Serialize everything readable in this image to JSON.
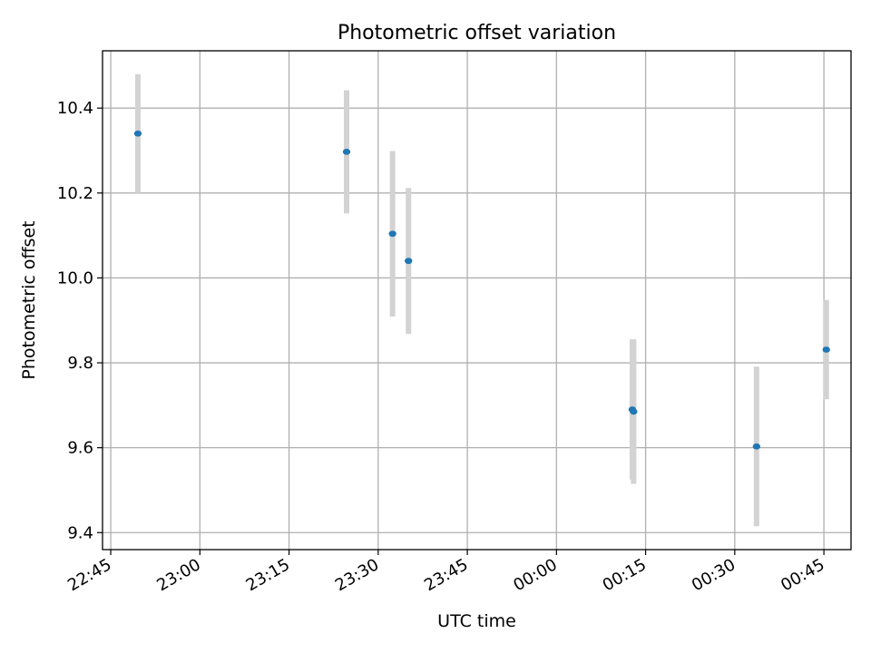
{
  "chart_data": {
    "type": "scatter",
    "title": "Photometric offset variation",
    "xlabel": "UTC time",
    "ylabel": "Photometric offset",
    "grid": true,
    "x_ticks": [
      {
        "label": "22:45",
        "minutes": 0
      },
      {
        "label": "23:00",
        "minutes": 15
      },
      {
        "label": "23:15",
        "minutes": 30
      },
      {
        "label": "23:30",
        "minutes": 45
      },
      {
        "label": "23:45",
        "minutes": 60
      },
      {
        "label": "00:00",
        "minutes": 75
      },
      {
        "label": "00:15",
        "minutes": 90
      },
      {
        "label": "00:30",
        "minutes": 105
      },
      {
        "label": "00:45",
        "minutes": 120
      }
    ],
    "xlim": [
      "22:43:37",
      "00:49:34"
    ],
    "ylim": [
      9.36,
      10.535
    ],
    "y_ticks": [
      9.4,
      9.6,
      9.8,
      10.0,
      10.2,
      10.4
    ],
    "series": [
      {
        "color": "#1f77b4",
        "error_color": "#d3d3d3",
        "points": [
          {
            "time": "22:49:34",
            "y": 10.34,
            "err": 0.14
          },
          {
            "time": "23:24:41",
            "y": 10.297,
            "err": 0.145
          },
          {
            "time": "23:32:25",
            "y": 10.104,
            "err": 0.195
          },
          {
            "time": "23:35:06",
            "y": 10.04,
            "err": 0.172
          },
          {
            "time": "00:12:46",
            "y": 9.69,
            "err": 0.165
          },
          {
            "time": "00:12:59",
            "y": 9.685,
            "err": 0.17
          },
          {
            "time": "00:33:40",
            "y": 9.603,
            "err": 0.188
          },
          {
            "time": "00:45:24",
            "y": 9.831,
            "err": 0.117
          }
        ]
      }
    ]
  }
}
